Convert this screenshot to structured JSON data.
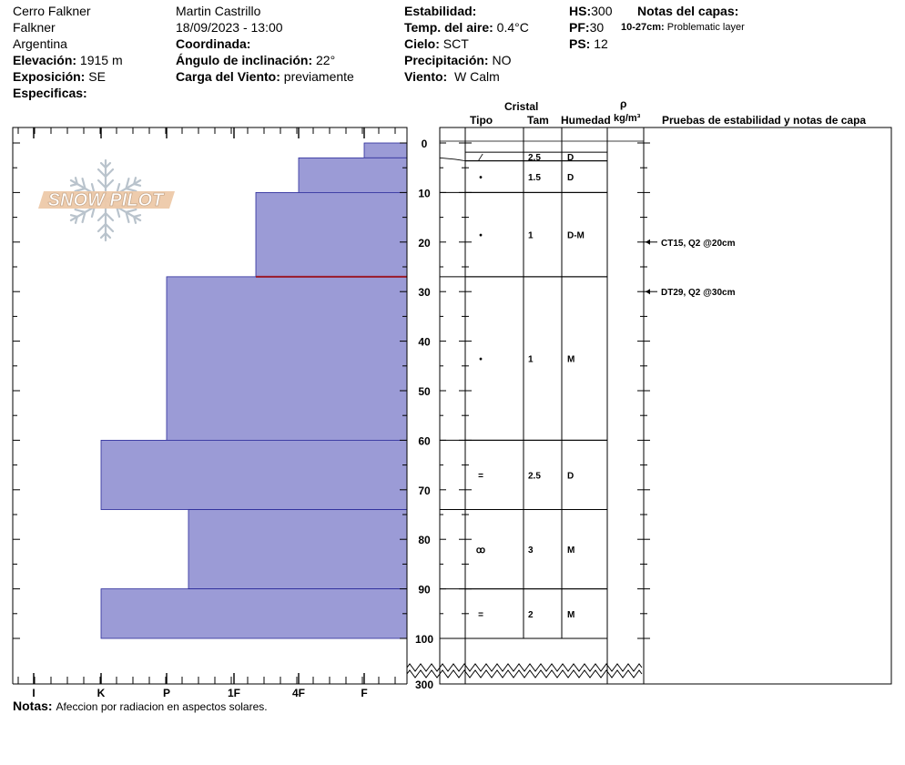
{
  "header": {
    "location": "Cerro Falkner",
    "sub_location": "Falkner",
    "country": "Argentina",
    "elevation_label": "Elevación:",
    "elevation_value": "1915 m",
    "aspect_label": "Exposición:",
    "aspect_value": "SE",
    "specifics_label": "Especificas:",
    "observer": "Martin Castrillo",
    "datetime": "18/09/2023 - 13:00",
    "coord_label": "Coordinada:",
    "slope_label": "Ángulo de inclinación:",
    "slope_value": "22°",
    "wind_load_label": "Carga del Viento:",
    "wind_load_value": "previamente",
    "stability_label": "Estabilidad:",
    "air_temp_label": "Temp. del aire:",
    "air_temp_value": "0.4°C",
    "sky_label": "Cielo:",
    "sky_value": "SCT",
    "precip_label": "Precipitación:",
    "precip_value": "NO",
    "wind_label": "Viento:",
    "wind_value": "W Calm",
    "hs_label": "HS:",
    "hs_value": "300",
    "pf_label": "PF:",
    "pf_value": "30",
    "ps_label": "PS:",
    "ps_value": "12",
    "layer_notes_label": "Notas del capas:",
    "layer_note_range": "10-27cm:",
    "layer_note_text": "Problematic layer"
  },
  "logo_text": "SNOW PILOT",
  "columns": {
    "crystal": "Cristal",
    "type": "Tipo",
    "size": "Tam",
    "moisture": "Humedad",
    "rho": "ρ",
    "density_unit": "kg/m³",
    "tests": "Pruebas de estabilidad y notas de capa"
  },
  "notes_label": "Notas:",
  "notes_text": "Afeccion por radiacion en aspectos solares.",
  "colors": {
    "layer_fill": "#9b9bd6",
    "layer_stroke": "#2a2a9a",
    "problem_line": "#9a1a2a"
  },
  "chart_data": {
    "type": "bar",
    "orientation": "horizontal",
    "title": "",
    "xlabel": "",
    "ylabel": "",
    "hardness_scale": [
      "I",
      "K",
      "P",
      "1F",
      "4F",
      "F"
    ],
    "depth_ticks": [
      "0",
      "10",
      "20",
      "30",
      "40",
      "50",
      "60",
      "70",
      "80",
      "90",
      "100"
    ],
    "depth_break_label": "300",
    "ylim": [
      0,
      100
    ],
    "layers": [
      {
        "top": 0,
        "bottom": 3,
        "hardness": "F"
      },
      {
        "top": 3,
        "bottom": 10,
        "hardness": "4F"
      },
      {
        "top": 10,
        "bottom": 27,
        "hardness": "1F-"
      },
      {
        "top": 27,
        "bottom": 60,
        "hardness": "P+"
      },
      {
        "top": 60,
        "bottom": 74,
        "hardness": "K"
      },
      {
        "top": 74,
        "bottom": 90,
        "hardness": "P-"
      },
      {
        "top": 90,
        "bottom": 100,
        "hardness": "K"
      }
    ],
    "crystal_rows": [
      {
        "top": 0,
        "bottom": 3,
        "type": "",
        "size": "",
        "moisture": ""
      },
      {
        "top": 3,
        "bottom": 10,
        "type": "⁄",
        "size": "2.5",
        "moisture": "D"
      },
      {
        "top": 10,
        "bottom": 27,
        "type": "•",
        "size": "1.5",
        "moisture": "D"
      },
      {
        "top": 27,
        "bottom": 60,
        "type": "•",
        "size": "1",
        "moisture": "D-M"
      },
      {
        "top": 60,
        "bottom": 74,
        "type": "•",
        "size": "1",
        "moisture": "M"
      },
      {
        "top": 74,
        "bottom": 90,
        "type": "=",
        "size": "2.5",
        "moisture": "D"
      },
      {
        "top": 90,
        "bottom": 100,
        "type": "ꝏ",
        "size": "3",
        "moisture": "M"
      }
    ],
    "crystal_rows_display": [
      {
        "top": 1.85,
        "bottom": 3.6,
        "type": "⁄",
        "size": "2.5",
        "moisture": "D"
      },
      {
        "top": 3.6,
        "bottom": 10,
        "type": "•",
        "size": "1.5",
        "moisture": "D"
      },
      {
        "top": 10,
        "bottom": 27,
        "type": "•",
        "size": "1",
        "moisture": "D-M"
      },
      {
        "top": 27,
        "bottom": 60,
        "type": "•",
        "size": "1",
        "moisture": "M"
      },
      {
        "top": 60,
        "bottom": 74,
        "type": "=",
        "size": "2.5",
        "moisture": "D"
      },
      {
        "top": 74,
        "bottom": 90,
        "type": "ꝏ",
        "size": "3",
        "moisture": "M"
      },
      {
        "top": 90,
        "bottom": 100,
        "type": "=",
        "size": "2",
        "moisture": "M"
      }
    ],
    "problem_layer_depth": 27,
    "tests": [
      {
        "depth": 20,
        "label": "CT15, Q2 @20cm"
      },
      {
        "depth": 30,
        "label": "DT29, Q2 @30cm"
      }
    ]
  }
}
